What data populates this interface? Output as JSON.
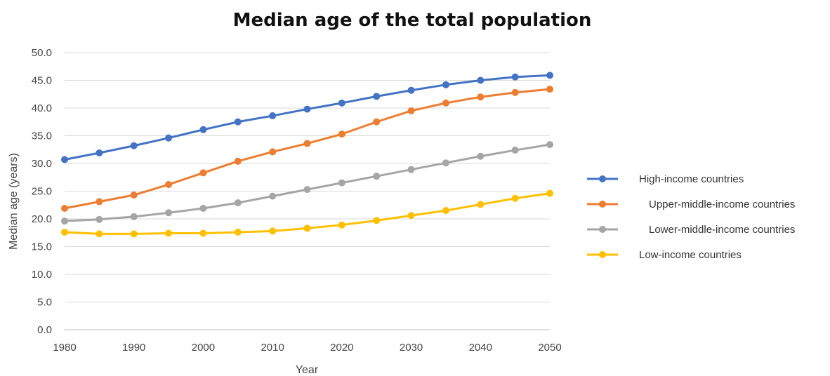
{
  "chart_data": {
    "type": "line",
    "title": "Median age of the total population",
    "xlabel": "Year",
    "ylabel": "Median age (years)",
    "x": [
      1980,
      1985,
      1990,
      1995,
      2000,
      2005,
      2010,
      2015,
      2020,
      2025,
      2030,
      2035,
      2040,
      2045,
      2050
    ],
    "x_tick_labels": [
      "1980",
      "1990",
      "2000",
      "2010",
      "2020",
      "2030",
      "2040",
      "2050"
    ],
    "y_tick_labels": [
      "0.0",
      "5.0",
      "10.0",
      "15.0",
      "20.0",
      "25.0",
      "30.0",
      "35.0",
      "40.0",
      "45.0",
      "50.0"
    ],
    "xlim": [
      1980,
      2050
    ],
    "ylim": [
      0,
      50
    ],
    "grid": true,
    "legend_position": "right",
    "series": [
      {
        "name": "High-income countries",
        "color": "#4472C4",
        "values": [
          30.7,
          31.9,
          33.2,
          34.6,
          36.1,
          37.5,
          38.6,
          39.8,
          40.9,
          42.1,
          43.2,
          44.2,
          45.0,
          45.6,
          45.9
        ]
      },
      {
        "name": "Upper-middle-income countries",
        "color": "#ED7D31",
        "values": [
          21.9,
          23.1,
          24.3,
          26.2,
          28.3,
          30.4,
          32.1,
          33.6,
          35.3,
          37.5,
          39.5,
          40.9,
          42.0,
          42.8,
          43.4
        ]
      },
      {
        "name": "Lower-middle-income countries",
        "color": "#A5A5A5",
        "values": [
          19.6,
          19.9,
          20.4,
          21.1,
          21.9,
          22.9,
          24.1,
          25.3,
          26.5,
          27.7,
          28.9,
          30.1,
          31.3,
          32.4,
          33.4
        ]
      },
      {
        "name": "Low-income countries",
        "color": "#FFC000",
        "values": [
          17.6,
          17.3,
          17.3,
          17.4,
          17.4,
          17.6,
          17.8,
          18.3,
          18.9,
          19.7,
          20.6,
          21.5,
          22.6,
          23.7,
          24.6
        ]
      }
    ]
  }
}
